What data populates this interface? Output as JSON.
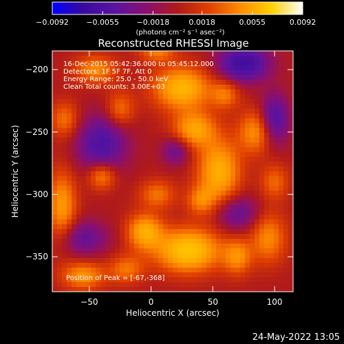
{
  "chart_data": {
    "type": "heatmap",
    "title": "Reconstructed RHESSI Image",
    "xlabel": "Heliocentric X (arcsec)",
    "ylabel": "Heliocentric Y (arcsec)",
    "xlim": [
      -80,
      115
    ],
    "ylim": [
      -378,
      -185
    ],
    "x_ticks": [
      -50,
      0,
      50,
      100
    ],
    "y_ticks": [
      -200,
      -250,
      -300,
      -350
    ],
    "x_tick_labels": [
      "−50",
      "0",
      "50",
      "100"
    ],
    "y_tick_labels": [
      "−200",
      "−250",
      "−300",
      "−350"
    ],
    "colorbar": {
      "min": -0.0092,
      "max": 0.0092,
      "tick_values": [
        -0.0092,
        -0.0055,
        -0.0018,
        0.0018,
        0.0055,
        0.0092
      ],
      "tick_labels": [
        "−0.0092",
        "−0.0055",
        "−0.0018",
        "0.0018",
        "0.0055",
        "0.0092"
      ],
      "unit_label": "(photons cm⁻² s⁻¹ asec⁻²)",
      "colormap": [
        "#0000ff",
        "#3a0a9c",
        "#5a14a0",
        "#8a0f70",
        "#b01a1a",
        "#e04000",
        "#ff8c00",
        "#ffd000",
        "#ffffff"
      ]
    },
    "annotations": {
      "time_range": "16-Dec-2015 05:42:36.000 to 05:45:12.000",
      "detectors": "Detectors: 1F 5F 7F, Att 0",
      "energy": "Energy Range: 25.0 - 50.0 keV",
      "clean": "Clean    Total counts: 3.00E+03",
      "peak": "Position of Peak = [-67,-368]"
    },
    "blobs": [
      {
        "x": 30,
        "y": -345,
        "amp": 1.0,
        "sx": 18,
        "sy": 12
      },
      {
        "x": -5,
        "y": -330,
        "amp": 0.75,
        "sx": 10,
        "sy": 10
      },
      {
        "x": 55,
        "y": -282,
        "amp": 0.8,
        "sx": 12,
        "sy": 18
      },
      {
        "x": 25,
        "y": -215,
        "amp": 0.85,
        "sx": 16,
        "sy": 12
      },
      {
        "x": 35,
        "y": -248,
        "amp": 0.7,
        "sx": 12,
        "sy": 10
      },
      {
        "x": 85,
        "y": -250,
        "amp": 0.6,
        "sx": 10,
        "sy": 12
      },
      {
        "x": -72,
        "y": -310,
        "amp": 0.65,
        "sx": 8,
        "sy": 20
      },
      {
        "x": -40,
        "y": -285,
        "amp": 0.6,
        "sx": 8,
        "sy": 8
      },
      {
        "x": -45,
        "y": -200,
        "amp": 0.55,
        "sx": 12,
        "sy": 8
      },
      {
        "x": -25,
        "y": -232,
        "amp": 0.45,
        "sx": 8,
        "sy": 10
      },
      {
        "x": 95,
        "y": -335,
        "amp": 0.55,
        "sx": 10,
        "sy": 14
      },
      {
        "x": 5,
        "y": -300,
        "amp": 0.45,
        "sx": 10,
        "sy": 8
      },
      {
        "x": -55,
        "y": -365,
        "amp": 0.6,
        "sx": 12,
        "sy": 8
      },
      {
        "x": 70,
        "y": -350,
        "amp": 0.55,
        "sx": 8,
        "sy": 10
      },
      {
        "x": 60,
        "y": -220,
        "amp": 0.45,
        "sx": 8,
        "sy": 8
      },
      {
        "x": 5,
        "y": -185,
        "amp": 0.5,
        "sx": 10,
        "sy": 6
      },
      {
        "x": -70,
        "y": -240,
        "amp": 0.45,
        "sx": 8,
        "sy": 10
      },
      {
        "x": 40,
        "y": -305,
        "amp": 0.45,
        "sx": 8,
        "sy": 8
      },
      {
        "x": -20,
        "y": -360,
        "amp": 0.45,
        "sx": 10,
        "sy": 8
      },
      {
        "x": 100,
        "y": -290,
        "amp": 0.4,
        "sx": 8,
        "sy": 10
      },
      {
        "x": -40,
        "y": -260,
        "amp": -0.7,
        "sx": 14,
        "sy": 16
      },
      {
        "x": 75,
        "y": -195,
        "amp": -0.9,
        "sx": 14,
        "sy": 10
      },
      {
        "x": 100,
        "y": -240,
        "amp": -0.7,
        "sx": 8,
        "sy": 14
      },
      {
        "x": -55,
        "y": -335,
        "amp": -0.5,
        "sx": 14,
        "sy": 10
      },
      {
        "x": 70,
        "y": -315,
        "amp": -0.5,
        "sx": 12,
        "sy": 10
      },
      {
        "x": 20,
        "y": -265,
        "amp": -0.45,
        "sx": 8,
        "sy": 8
      }
    ]
  },
  "footer": {
    "date": "24-May-2022 13:05"
  }
}
